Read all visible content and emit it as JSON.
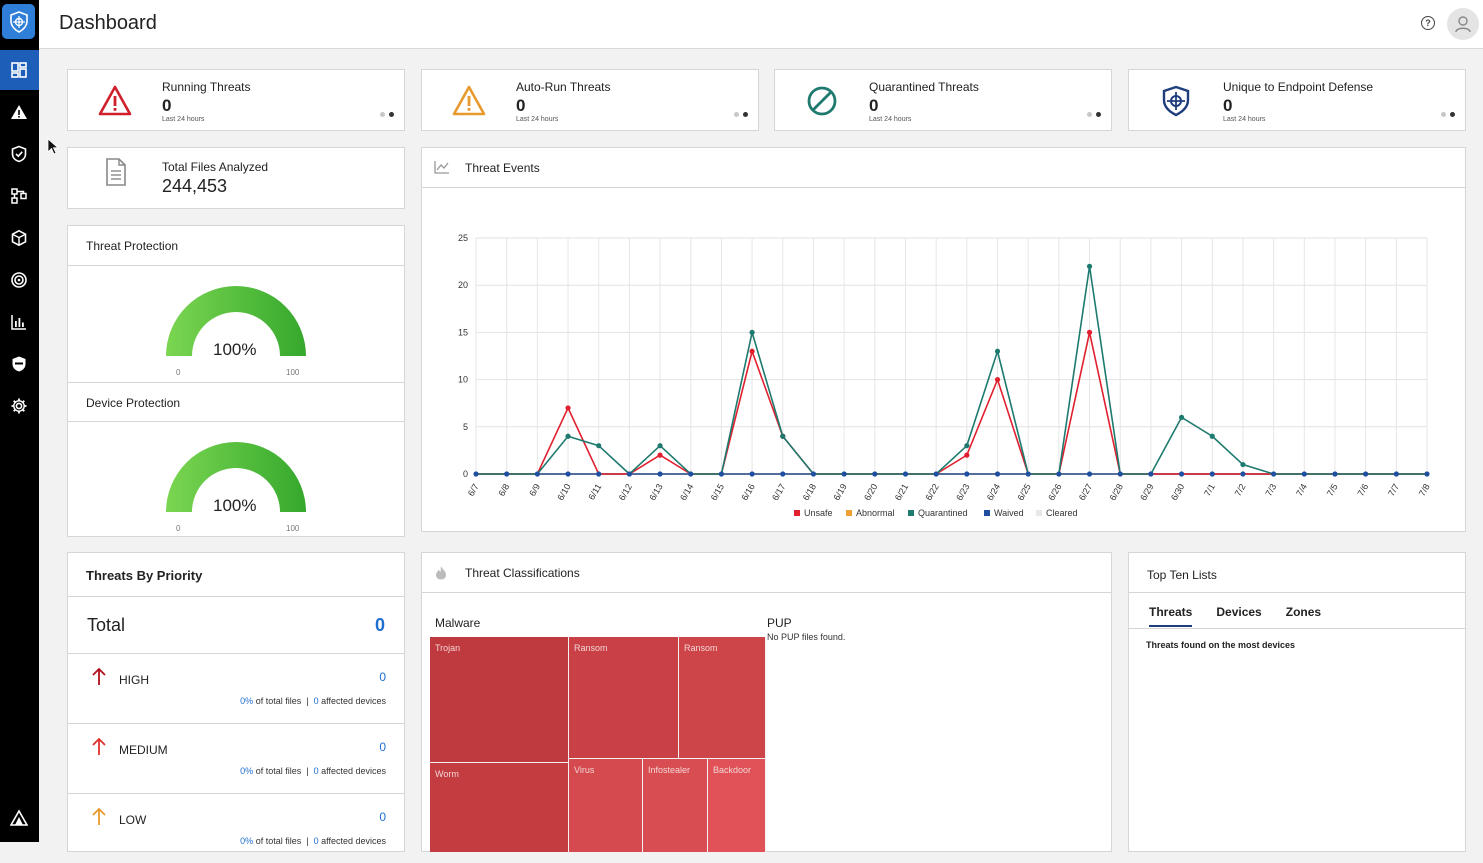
{
  "header": {
    "title": "Dashboard"
  },
  "sidebar": {
    "items": [
      {
        "icon": "dashboard-icon"
      },
      {
        "icon": "alert-icon"
      },
      {
        "icon": "shield-icon"
      },
      {
        "icon": "network-icon"
      },
      {
        "icon": "cube-icon"
      },
      {
        "icon": "target-icon"
      },
      {
        "icon": "bar-chart-icon"
      },
      {
        "icon": "shield-check-icon"
      },
      {
        "icon": "gear-icon"
      }
    ]
  },
  "stats": [
    {
      "title": "Running Threats",
      "value": "0",
      "sub": "Last 24 hours",
      "color": "#d0202c",
      "icon": "warning-icon"
    },
    {
      "title": "Auto-Run Threats",
      "value": "0",
      "sub": "Last 24 hours",
      "color": "#e89a2e",
      "icon": "warning-icon"
    },
    {
      "title": "Quarantined Threats",
      "value": "0",
      "sub": "Last 24 hours",
      "color": "#1e7a6e",
      "icon": "blocked-icon"
    },
    {
      "title": "Unique to Endpoint Defense",
      "value": "0",
      "sub": "Last 24 hours",
      "color": "#1d3d7c",
      "icon": "shield-target-icon"
    }
  ],
  "files": {
    "title": "Total Files Analyzed",
    "value": "244,453"
  },
  "threat_protection": {
    "title": "Threat Protection",
    "value": "100%",
    "min": "0",
    "max": "100",
    "level": 100
  },
  "device_protection": {
    "title": "Device Protection",
    "value": "100%",
    "min": "0",
    "max": "100",
    "level": 100
  },
  "threat_events": {
    "title": "Threat Events"
  },
  "chart_data": {
    "type": "line",
    "categories": [
      "6/7",
      "6/8",
      "6/9",
      "6/10",
      "6/11",
      "6/12",
      "6/13",
      "6/14",
      "6/15",
      "6/16",
      "6/17",
      "6/18",
      "6/19",
      "6/20",
      "6/21",
      "6/22",
      "6/23",
      "6/24",
      "6/25",
      "6/26",
      "6/27",
      "6/28",
      "6/29",
      "6/30",
      "7/1",
      "7/2",
      "7/3",
      "7/4",
      "7/5",
      "7/6",
      "7/7",
      "7/8"
    ],
    "ylim": [
      0,
      25
    ],
    "yticks": [
      "0",
      "5",
      "10",
      "15",
      "20",
      "25"
    ],
    "grid": true,
    "legend_placement": "bottom",
    "series": [
      {
        "name": "Unsafe",
        "color": "#e0202f",
        "values": [
          0,
          0,
          0,
          7,
          0,
          0,
          2,
          0,
          0,
          13,
          4,
          0,
          0,
          0,
          0,
          0,
          2,
          10,
          0,
          0,
          15,
          0,
          0,
          0,
          0,
          0,
          0,
          0,
          0,
          0,
          0,
          0
        ]
      },
      {
        "name": "Abnormal",
        "color": "#f0a030",
        "values": [
          0,
          0,
          0,
          0,
          0,
          0,
          0,
          0,
          0,
          0,
          0,
          0,
          0,
          0,
          0,
          0,
          0,
          0,
          0,
          0,
          0,
          0,
          0,
          0,
          0,
          0,
          0,
          0,
          0,
          0,
          0,
          0
        ]
      },
      {
        "name": "Quarantined",
        "color": "#1e7a6e",
        "values": [
          0,
          0,
          0,
          4,
          3,
          0,
          3,
          0,
          0,
          15,
          4,
          0,
          0,
          0,
          0,
          0,
          3,
          13,
          0,
          0,
          22,
          0,
          0,
          6,
          4,
          1,
          0,
          0,
          0,
          0,
          0,
          0
        ]
      },
      {
        "name": "Waived",
        "color": "#1f4fa0",
        "values": [
          0,
          0,
          0,
          0,
          0,
          0,
          0,
          0,
          0,
          0,
          0,
          0,
          0,
          0,
          0,
          0,
          0,
          0,
          0,
          0,
          0,
          0,
          0,
          0,
          0,
          0,
          0,
          0,
          0,
          0,
          0,
          0
        ]
      },
      {
        "name": "Cleared",
        "color": "#e8e8e8",
        "values": [
          0,
          0,
          0,
          0,
          0,
          0,
          0,
          0,
          0,
          0,
          0,
          0,
          0,
          0,
          0,
          0,
          0,
          0,
          0,
          0,
          0,
          0,
          0,
          0,
          0,
          0,
          0,
          0,
          0,
          0,
          0,
          0
        ]
      }
    ]
  },
  "priority": {
    "title": "Threats By Priority",
    "total_label": "Total",
    "total_value": "0",
    "rows": [
      {
        "label": "HIGH",
        "value": "0",
        "pct": "0%",
        "pct_text": "of total files",
        "dev_value": "0",
        "dev_text": "affected devices",
        "color": "#b0101e"
      },
      {
        "label": "MEDIUM",
        "value": "0",
        "pct": "0%",
        "pct_text": "of total files",
        "dev_value": "0",
        "dev_text": "affected devices",
        "color": "#e03030"
      },
      {
        "label": "LOW",
        "value": "0",
        "pct": "0%",
        "pct_text": "of total files",
        "dev_value": "0",
        "dev_text": "affected devices",
        "color": "#e89a2e"
      }
    ]
  },
  "classifications": {
    "title": "Threat Classifications",
    "malware_label": "Malware",
    "pup_label": "PUP",
    "pup_empty": "No PUP files found.",
    "tiles": [
      "Trojan",
      "Ransom",
      "Ransom",
      "Worm",
      "Virus",
      "Infostealer",
      "Backdoor"
    ]
  },
  "top_ten": {
    "title": "Top Ten Lists",
    "tabs": [
      "Threats",
      "Devices",
      "Zones"
    ],
    "subtitle": "Threats found on the most devices"
  }
}
